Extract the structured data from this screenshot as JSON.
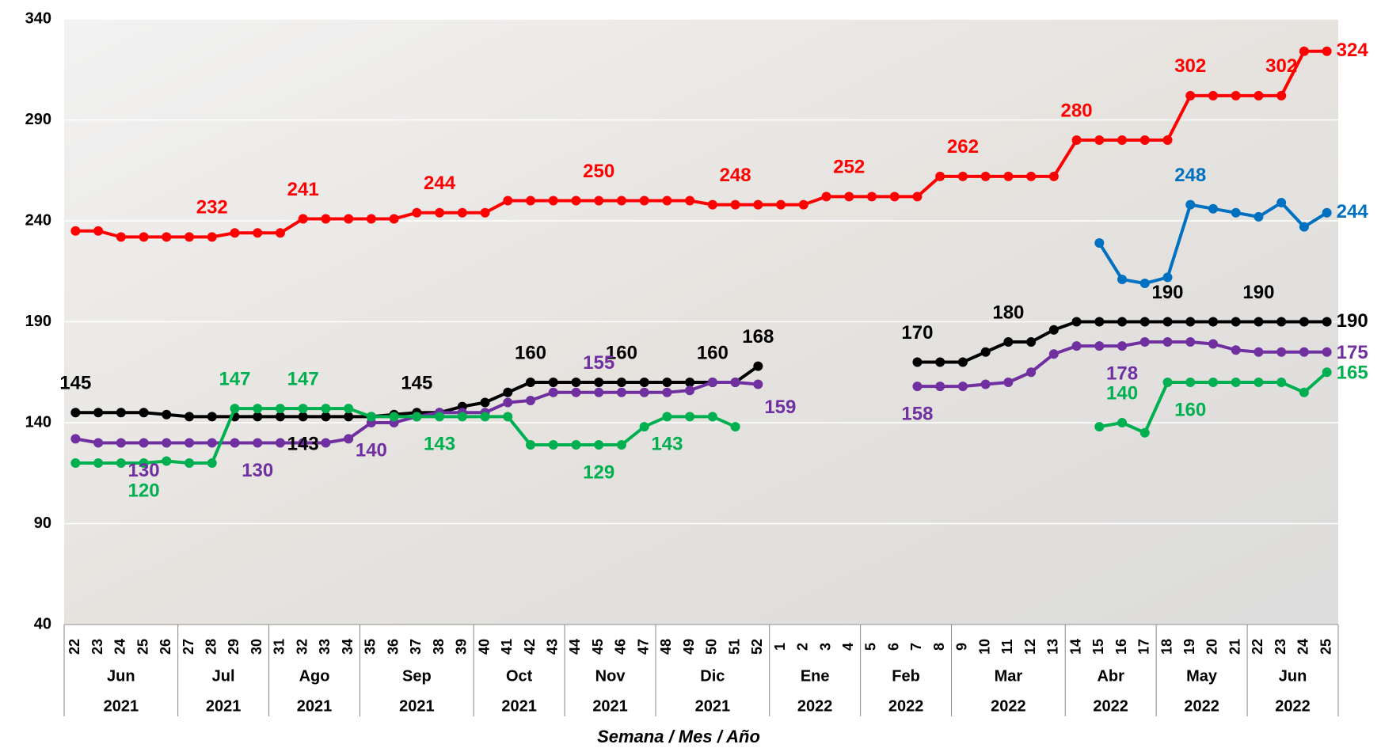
{
  "chart_data": {
    "type": "line",
    "x_title": "Semana / Mes / Año",
    "categories": [
      "22",
      "23",
      "24",
      "25",
      "26",
      "27",
      "28",
      "29",
      "30",
      "31",
      "32",
      "33",
      "34",
      "35",
      "36",
      "37",
      "38",
      "39",
      "40",
      "41",
      "42",
      "43",
      "44",
      "45",
      "46",
      "47",
      "48",
      "49",
      "50",
      "51",
      "52",
      "1",
      "2",
      "3",
      "4",
      "5",
      "6",
      "7",
      "8",
      "9",
      "10",
      "11",
      "12",
      "13",
      "14",
      "15",
      "16",
      "17",
      "18",
      "19",
      "20",
      "21",
      "22",
      "23",
      "24",
      "25"
    ],
    "month_groups": [
      {
        "label": "Jun",
        "year": "2021",
        "span": 5
      },
      {
        "label": "Jul",
        "year": "2021",
        "span": 4
      },
      {
        "label": "Ago",
        "year": "2021",
        "span": 4
      },
      {
        "label": "Sep",
        "year": "2021",
        "span": 5
      },
      {
        "label": "Oct",
        "year": "2021",
        "span": 4
      },
      {
        "label": "Nov",
        "year": "2021",
        "span": 4
      },
      {
        "label": "Dic",
        "year": "2021",
        "span": 5
      },
      {
        "label": "Ene",
        "year": "2022",
        "span": 4
      },
      {
        "label": "Feb",
        "year": "2022",
        "span": 4
      },
      {
        "label": "Mar",
        "year": "2022",
        "span": 5
      },
      {
        "label": "Abr",
        "year": "2022",
        "span": 4
      },
      {
        "label": "May",
        "year": "2022",
        "span": 4
      },
      {
        "label": "Jun",
        "year": "2022",
        "span": 4
      }
    ],
    "series": [
      {
        "color": "#ff0000",
        "values": [
          235,
          235,
          232,
          232,
          232,
          232,
          232,
          234,
          234,
          234,
          241,
          241,
          241,
          241,
          241,
          244,
          244,
          244,
          244,
          250,
          250,
          250,
          250,
          250,
          250,
          250,
          250,
          250,
          248,
          248,
          248,
          248,
          248,
          252,
          252,
          252,
          252,
          252,
          262,
          262,
          262,
          262,
          262,
          262,
          280,
          280,
          280,
          280,
          280,
          302,
          302,
          302,
          302,
          302,
          324,
          324
        ]
      },
      {
        "color": "#000000",
        "values": [
          145,
          145,
          145,
          145,
          144,
          143,
          143,
          143,
          143,
          143,
          143,
          143,
          143,
          143,
          144,
          145,
          145,
          148,
          150,
          155,
          160,
          160,
          160,
          160,
          160,
          160,
          160,
          160,
          160,
          160,
          168,
          null,
          null,
          null,
          null,
          null,
          null,
          170,
          170,
          170,
          175,
          180,
          180,
          186,
          190,
          190,
          190,
          190,
          190,
          190,
          190,
          190,
          190,
          190,
          190,
          190
        ]
      },
      {
        "color": "#7030a0",
        "values": [
          132,
          130,
          130,
          130,
          130,
          130,
          130,
          130,
          130,
          130,
          130,
          130,
          132,
          140,
          140,
          143,
          145,
          145,
          145,
          150,
          151,
          155,
          155,
          155,
          155,
          155,
          155,
          156,
          160,
          160,
          159,
          null,
          null,
          null,
          null,
          null,
          null,
          158,
          158,
          158,
          159,
          160,
          165,
          174,
          178,
          178,
          178,
          180,
          180,
          180,
          179,
          176,
          175,
          175,
          175,
          175
        ]
      },
      {
        "color": "#00b050",
        "values": [
          120,
          120,
          120,
          120,
          121,
          120,
          120,
          147,
          147,
          147,
          147,
          147,
          147,
          143,
          143,
          143,
          143,
          143,
          143,
          143,
          129,
          129,
          129,
          129,
          129,
          138,
          143,
          143,
          143,
          138,
          null,
          null,
          null,
          null,
          null,
          null,
          null,
          null,
          null,
          null,
          null,
          null,
          null,
          null,
          null,
          138,
          140,
          135,
          160,
          160,
          160,
          160,
          160,
          160,
          155,
          165
        ]
      },
      {
        "color": "#0070c0",
        "values": [
          null,
          null,
          null,
          null,
          null,
          null,
          null,
          null,
          null,
          null,
          null,
          null,
          null,
          null,
          null,
          null,
          null,
          null,
          null,
          null,
          null,
          null,
          null,
          null,
          null,
          null,
          null,
          null,
          null,
          null,
          null,
          null,
          null,
          null,
          null,
          null,
          null,
          null,
          null,
          null,
          null,
          null,
          null,
          null,
          null,
          229,
          211,
          209,
          212,
          248,
          246,
          244,
          242,
          249,
          237,
          244
        ]
      }
    ],
    "ylim": [
      40,
      340
    ],
    "yticks": [
      40,
      90,
      140,
      190,
      240,
      290,
      340
    ],
    "grid": true
  }
}
